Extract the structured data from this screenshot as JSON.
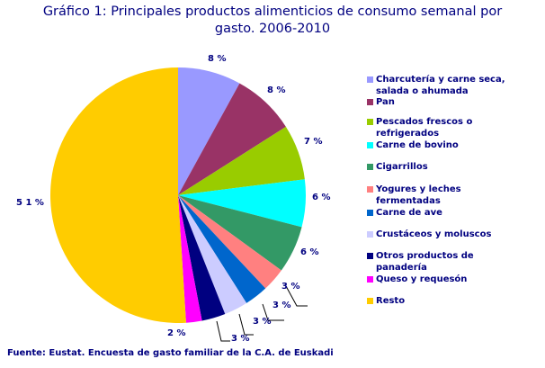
{
  "title": "Gráfico 1: Principales productos alimenticios de consumo semanal por gasto. 2006-2010",
  "title_line1": "Gráfico 1: Principales productos alimenticios de consumo semanal por",
  "title_line2": "gasto. 2006-2010",
  "source": "Fuente: Eustat. Encuesta de gasto familiar de la C.A. de Euskadi",
  "chart_data": {
    "type": "pie",
    "title": "Gráfico 1: Principales productos alimenticios de consumo semanal por gasto. 2006-2010",
    "categories": [
      "Charcutería y carne seca, salada o ahumada",
      "Pan",
      "Pescados frescos o refrigerados",
      "Carne de bovino",
      "Cigarrillos",
      "Yogures y leches fermentadas",
      "Carne de ave",
      "Crustáceos y moluscos",
      "Otros productos de panadería",
      "Queso y requesón",
      "Resto"
    ],
    "values": [
      8,
      8,
      7,
      6,
      6,
      3,
      3,
      3,
      3,
      2,
      51
    ],
    "value_labels": [
      "8%",
      "8%",
      "7%",
      "6%",
      "6%",
      "3%",
      "3%",
      "3%",
      "3%",
      "2%",
      "51%"
    ],
    "colors": [
      "#9999FF",
      "#993366",
      "#99CC00",
      "#00FFFF",
      "#339966",
      "#FF8080",
      "#0066CC",
      "#CCCCFF",
      "#000080",
      "#FF00FF",
      "#FFCC00"
    ],
    "legend_position": "right",
    "start_angle": "12 o'clock, clockwise"
  },
  "legend": [
    {
      "label": "Charcutería y carne seca, salada o ahumada",
      "color": "#9999FF"
    },
    {
      "label": "Pan",
      "color": "#993366"
    },
    {
      "label": "Pescados frescos o refrigerados",
      "color": "#99CC00"
    },
    {
      "label": "Carne de bovino",
      "color": "#00FFFF"
    },
    {
      "label": "Cigarrillos",
      "color": "#339966"
    },
    {
      "label": "Yogures y leches fermentadas",
      "color": "#FF8080"
    },
    {
      "label": "Carne de ave",
      "color": "#0066CC"
    },
    {
      "label": "Crustáceos y moluscos",
      "color": "#CCCCFF"
    },
    {
      "label": "Otros productos de panadería",
      "color": "#000080"
    },
    {
      "label": "Queso y requesón",
      "color": "#FF00FF"
    },
    {
      "label": "Resto",
      "color": "#FFCC00"
    }
  ],
  "labels": [
    "8 %",
    "8 %",
    "7 %",
    "6 %",
    "6 %",
    "3 %",
    "3 %",
    "3 %",
    "3 %",
    "2 %",
    "5 1 %"
  ]
}
